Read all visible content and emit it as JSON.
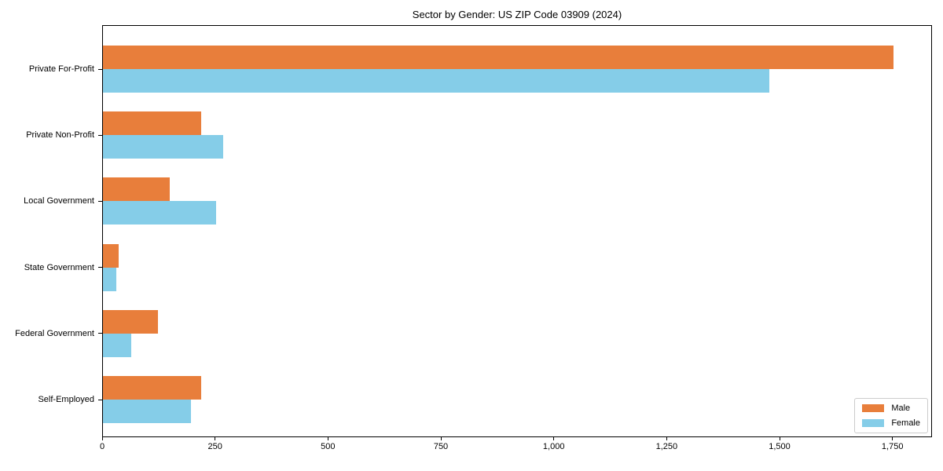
{
  "chart_data": {
    "type": "bar",
    "orientation": "horizontal",
    "title": "Sector by Gender: US ZIP Code 03909 (2024)",
    "categories": [
      "Private For-Profit",
      "Private Non-Profit",
      "Local Government",
      "State Government",
      "Federal Government",
      "Self-Employed"
    ],
    "series": [
      {
        "name": "Male",
        "color": "#e87e3b",
        "values": [
          1750,
          218,
          148,
          34,
          122,
          218
        ]
      },
      {
        "name": "Female",
        "color": "#85cde8",
        "values": [
          1475,
          267,
          250,
          29,
          63,
          195
        ]
      }
    ],
    "xlabel": "",
    "ylabel": "",
    "xlim": [
      0,
      1837.5
    ],
    "xticks": [
      0,
      250,
      500,
      750,
      1000,
      1250,
      1500,
      1750
    ],
    "xtick_labels": [
      "0",
      "250",
      "500",
      "750",
      "1,000",
      "1,250",
      "1,500",
      "1,750"
    ],
    "grid": false,
    "legend_position": "lower right",
    "colors": {
      "male": "#e87e3b",
      "female": "#85cde8",
      "spine": "#000000",
      "legend_border": "#cccccc"
    }
  }
}
